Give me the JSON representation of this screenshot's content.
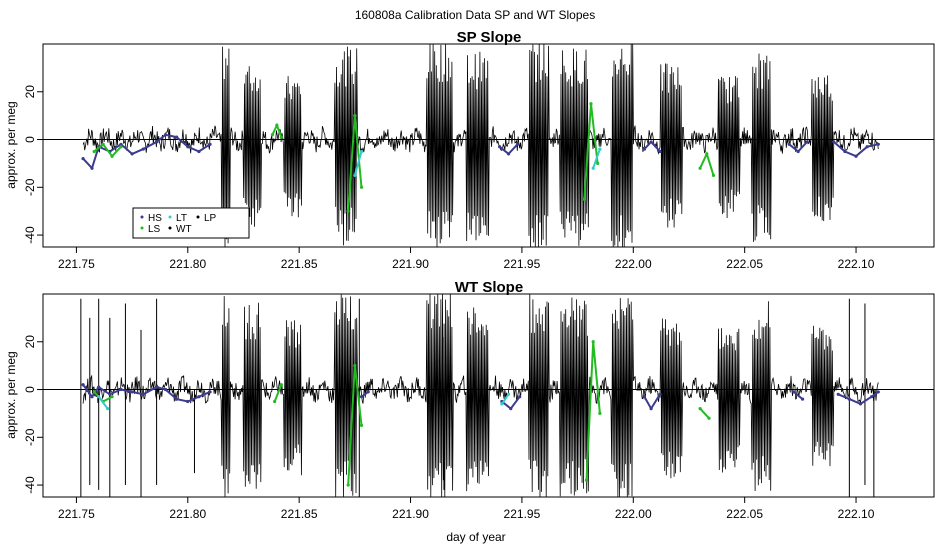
{
  "figure": {
    "title": "160808a   Calibration Data SP and WT Slopes",
    "xlabel": "day of year"
  },
  "legend": {
    "entries": [
      {
        "label": "HS",
        "color": "#3b3b8f",
        "marker": "dot"
      },
      {
        "label": "LS",
        "color": "#22bb22",
        "marker": "dot"
      },
      {
        "label": "LT",
        "color": "#33cccc",
        "marker": "dot"
      },
      {
        "label": "WT",
        "color": "#000000",
        "marker": "dot"
      },
      {
        "label": "LP",
        "color": "#000000",
        "marker": "dot"
      }
    ]
  },
  "chart_data": [
    {
      "type": "line",
      "title": "SP Slope",
      "xlabel": "",
      "ylabel": "approx. per meg",
      "xlim": [
        221.735,
        222.135
      ],
      "ylim": [
        -45,
        40
      ],
      "x_ticks": [
        "221.75",
        "221.80",
        "221.85",
        "221.90",
        "221.95",
        "222.00",
        "222.05",
        "222.10"
      ],
      "y_ticks": [
        "-40",
        "-20",
        "0",
        "20"
      ],
      "reference_line_y": 0,
      "series_segments": [
        {
          "name": "HS",
          "x": [
            221.753,
            221.757,
            221.76,
            221.765,
            221.77,
            221.775,
            221.78,
            221.786,
            221.79,
            221.795,
            221.8,
            221.805,
            221.81
          ],
          "y": [
            -8,
            -12,
            -3,
            -5,
            -2,
            -6,
            -4,
            -1,
            2,
            1,
            -3,
            -5,
            -2
          ]
        },
        {
          "name": "HS",
          "x": [
            221.94,
            221.944,
            221.948
          ],
          "y": [
            -3,
            -6,
            -2
          ]
        },
        {
          "name": "HS",
          "x": [
            222.005,
            222.008,
            222.012
          ],
          "y": [
            -4,
            -1,
            -5
          ]
        },
        {
          "name": "HS",
          "x": [
            222.07,
            222.074,
            222.078
          ],
          "y": [
            -2,
            -5,
            -1
          ]
        },
        {
          "name": "HS",
          "x": [
            222.09,
            222.095,
            222.1,
            222.105,
            222.11
          ],
          "y": [
            -1,
            -5,
            -7,
            -3,
            -2
          ]
        },
        {
          "name": "LS",
          "x": [
            221.758,
            221.762,
            221.766,
            221.77
          ],
          "y": [
            -5,
            -2,
            -7,
            -3
          ]
        },
        {
          "name": "LS",
          "x": [
            221.838,
            221.84,
            221.842
          ],
          "y": [
            2,
            6,
            1
          ]
        },
        {
          "name": "LS",
          "x": [
            221.872,
            221.875,
            221.878
          ],
          "y": [
            -30,
            10,
            -20
          ]
        },
        {
          "name": "LS",
          "x": [
            221.978,
            221.981,
            221.984
          ],
          "y": [
            -25,
            15,
            -10
          ]
        },
        {
          "name": "LS",
          "x": [
            222.03,
            222.033,
            222.036
          ],
          "y": [
            -12,
            -6,
            -15
          ]
        },
        {
          "name": "LT",
          "x": [
            221.875,
            221.878
          ],
          "y": [
            -15,
            -5
          ]
        },
        {
          "name": "LT",
          "x": [
            221.982,
            221.985
          ],
          "y": [
            -12,
            -4
          ]
        }
      ],
      "bursts": [
        {
          "x_start": 221.815,
          "x_end": 221.819,
          "amplitude": 45
        },
        {
          "x_start": 221.825,
          "x_end": 221.833,
          "amplitude": 35
        },
        {
          "x_start": 221.843,
          "x_end": 221.851,
          "amplitude": 30
        },
        {
          "x_start": 221.866,
          "x_end": 221.876,
          "amplitude": 42
        },
        {
          "x_start": 221.907,
          "x_end": 221.919,
          "amplitude": 45
        },
        {
          "x_start": 221.925,
          "x_end": 221.935,
          "amplitude": 40
        },
        {
          "x_start": 221.953,
          "x_end": 221.962,
          "amplitude": 45
        },
        {
          "x_start": 221.967,
          "x_end": 221.98,
          "amplitude": 42
        },
        {
          "x_start": 221.99,
          "x_end": 222.0,
          "amplitude": 45
        },
        {
          "x_start": 222.012,
          "x_end": 222.022,
          "amplitude": 35
        },
        {
          "x_start": 222.038,
          "x_end": 222.048,
          "amplitude": 30
        },
        {
          "x_start": 222.053,
          "x_end": 222.062,
          "amplitude": 40
        },
        {
          "x_start": 222.08,
          "x_end": 222.09,
          "amplitude": 32
        }
      ],
      "spikes": []
    },
    {
      "type": "line",
      "title": "WT Slope",
      "xlabel": "day of year",
      "ylabel": "approx. per meg",
      "xlim": [
        221.735,
        222.135
      ],
      "ylim": [
        -45,
        40
      ],
      "x_ticks": [
        "221.75",
        "221.80",
        "221.85",
        "221.90",
        "221.95",
        "222.00",
        "222.05",
        "222.10"
      ],
      "y_ticks": [
        "-40",
        "-20",
        "0",
        "20"
      ],
      "reference_line_y": 0,
      "series_segments": [
        {
          "name": "HS",
          "x": [
            221.753,
            221.757,
            221.76,
            221.765,
            221.77,
            221.775,
            221.78,
            221.786,
            221.79,
            221.795,
            221.8,
            221.805,
            221.81
          ],
          "y": [
            2,
            -3,
            1,
            -2,
            0,
            -1,
            -2,
            1,
            0,
            -4,
            -5,
            -3,
            -1
          ]
        },
        {
          "name": "HS",
          "x": [
            221.878,
            221.881
          ],
          "y": [
            -3,
            -1
          ]
        },
        {
          "name": "HS",
          "x": [
            221.941,
            221.945,
            221.949
          ],
          "y": [
            -5,
            -8,
            -3
          ]
        },
        {
          "name": "HS",
          "x": [
            222.005,
            222.008,
            222.012
          ],
          "y": [
            -3,
            -8,
            -2
          ]
        },
        {
          "name": "HS",
          "x": [
            222.072,
            222.076
          ],
          "y": [
            -1,
            -4
          ]
        },
        {
          "name": "HS",
          "x": [
            222.092,
            222.097,
            222.102,
            222.107,
            222.11
          ],
          "y": [
            -2,
            -4,
            -6,
            -3,
            -1
          ]
        },
        {
          "name": "LS",
          "x": [
            221.758,
            221.762,
            221.766
          ],
          "y": [
            -1,
            -5,
            -3
          ]
        },
        {
          "name": "LS",
          "x": [
            221.839,
            221.842
          ],
          "y": [
            -5,
            2
          ]
        },
        {
          "name": "LS",
          "x": [
            221.872,
            221.875,
            221.878
          ],
          "y": [
            -40,
            10,
            -15
          ]
        },
        {
          "name": "LS",
          "x": [
            221.979,
            221.982,
            221.985
          ],
          "y": [
            -38,
            20,
            -10
          ]
        },
        {
          "name": "LS",
          "x": [
            222.03,
            222.034
          ],
          "y": [
            -8,
            -12
          ]
        },
        {
          "name": "LT",
          "x": [
            221.76,
            221.764
          ],
          "y": [
            -3,
            -8
          ]
        },
        {
          "name": "LT",
          "x": [
            221.941,
            221.944
          ],
          "y": [
            -6,
            -2
          ]
        }
      ],
      "bursts": [
        {
          "x_start": 221.815,
          "x_end": 221.819,
          "amplitude": 45
        },
        {
          "x_start": 221.825,
          "x_end": 221.833,
          "amplitude": 40
        },
        {
          "x_start": 221.843,
          "x_end": 221.851,
          "amplitude": 33
        },
        {
          "x_start": 221.866,
          "x_end": 221.876,
          "amplitude": 44
        },
        {
          "x_start": 221.907,
          "x_end": 221.919,
          "amplitude": 45
        },
        {
          "x_start": 221.925,
          "x_end": 221.935,
          "amplitude": 40
        },
        {
          "x_start": 221.953,
          "x_end": 221.962,
          "amplitude": 44
        },
        {
          "x_start": 221.967,
          "x_end": 221.98,
          "amplitude": 42
        },
        {
          "x_start": 221.99,
          "x_end": 222.0,
          "amplitude": 45
        },
        {
          "x_start": 222.012,
          "x_end": 222.022,
          "amplitude": 35
        },
        {
          "x_start": 222.038,
          "x_end": 222.048,
          "amplitude": 32
        },
        {
          "x_start": 222.053,
          "x_end": 222.062,
          "amplitude": 40
        },
        {
          "x_start": 222.08,
          "x_end": 222.09,
          "amplitude": 30
        }
      ],
      "spikes": [
        {
          "x": 221.752,
          "y_min": -45,
          "y_max": 38
        },
        {
          "x": 221.756,
          "y_min": -40,
          "y_max": 30
        },
        {
          "x": 221.76,
          "y_min": -42,
          "y_max": 38
        },
        {
          "x": 221.765,
          "y_min": -45,
          "y_max": 30
        },
        {
          "x": 221.772,
          "y_min": -40,
          "y_max": 36
        },
        {
          "x": 221.779,
          "y_min": -45,
          "y_max": 25
        },
        {
          "x": 221.786,
          "y_min": -40,
          "y_max": 38
        },
        {
          "x": 221.803,
          "y_min": -35,
          "y_max": 0
        },
        {
          "x": 221.877,
          "y_min": -45,
          "y_max": 38
        },
        {
          "x": 221.915,
          "y_min": -42,
          "y_max": 22
        },
        {
          "x": 222.097,
          "y_min": -45,
          "y_max": 38
        },
        {
          "x": 222.104,
          "y_min": -40,
          "y_max": 36
        },
        {
          "x": 222.108,
          "y_min": -45,
          "y_max": 0
        }
      ]
    }
  ]
}
